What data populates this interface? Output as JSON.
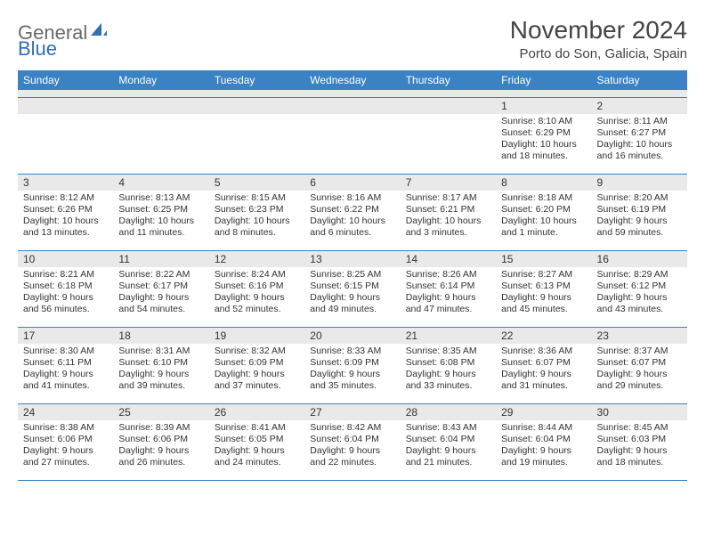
{
  "logo": {
    "text1": "General",
    "text2": "Blue"
  },
  "header": {
    "month_title": "November 2024",
    "location": "Porto do Son, Galicia, Spain"
  },
  "colors": {
    "header_blue": "#3a82c4",
    "rule_blue": "#3a82c4",
    "daynum_bg": "#e9e9e9",
    "logo_gray": "#6a6a6a",
    "logo_blue": "#2f6fb3",
    "text": "#333333",
    "background": "#ffffff"
  },
  "weekdays": [
    "Sunday",
    "Monday",
    "Tuesday",
    "Wednesday",
    "Thursday",
    "Friday",
    "Saturday"
  ],
  "weeks": [
    [
      {
        "n": "",
        "sr": "",
        "ss": "",
        "dl": ""
      },
      {
        "n": "",
        "sr": "",
        "ss": "",
        "dl": ""
      },
      {
        "n": "",
        "sr": "",
        "ss": "",
        "dl": ""
      },
      {
        "n": "",
        "sr": "",
        "ss": "",
        "dl": ""
      },
      {
        "n": "",
        "sr": "",
        "ss": "",
        "dl": ""
      },
      {
        "n": "1",
        "sr": "Sunrise: 8:10 AM",
        "ss": "Sunset: 6:29 PM",
        "dl": "Daylight: 10 hours and 18 minutes."
      },
      {
        "n": "2",
        "sr": "Sunrise: 8:11 AM",
        "ss": "Sunset: 6:27 PM",
        "dl": "Daylight: 10 hours and 16 minutes."
      }
    ],
    [
      {
        "n": "3",
        "sr": "Sunrise: 8:12 AM",
        "ss": "Sunset: 6:26 PM",
        "dl": "Daylight: 10 hours and 13 minutes."
      },
      {
        "n": "4",
        "sr": "Sunrise: 8:13 AM",
        "ss": "Sunset: 6:25 PM",
        "dl": "Daylight: 10 hours and 11 minutes."
      },
      {
        "n": "5",
        "sr": "Sunrise: 8:15 AM",
        "ss": "Sunset: 6:23 PM",
        "dl": "Daylight: 10 hours and 8 minutes."
      },
      {
        "n": "6",
        "sr": "Sunrise: 8:16 AM",
        "ss": "Sunset: 6:22 PM",
        "dl": "Daylight: 10 hours and 6 minutes."
      },
      {
        "n": "7",
        "sr": "Sunrise: 8:17 AM",
        "ss": "Sunset: 6:21 PM",
        "dl": "Daylight: 10 hours and 3 minutes."
      },
      {
        "n": "8",
        "sr": "Sunrise: 8:18 AM",
        "ss": "Sunset: 6:20 PM",
        "dl": "Daylight: 10 hours and 1 minute."
      },
      {
        "n": "9",
        "sr": "Sunrise: 8:20 AM",
        "ss": "Sunset: 6:19 PM",
        "dl": "Daylight: 9 hours and 59 minutes."
      }
    ],
    [
      {
        "n": "10",
        "sr": "Sunrise: 8:21 AM",
        "ss": "Sunset: 6:18 PM",
        "dl": "Daylight: 9 hours and 56 minutes."
      },
      {
        "n": "11",
        "sr": "Sunrise: 8:22 AM",
        "ss": "Sunset: 6:17 PM",
        "dl": "Daylight: 9 hours and 54 minutes."
      },
      {
        "n": "12",
        "sr": "Sunrise: 8:24 AM",
        "ss": "Sunset: 6:16 PM",
        "dl": "Daylight: 9 hours and 52 minutes."
      },
      {
        "n": "13",
        "sr": "Sunrise: 8:25 AM",
        "ss": "Sunset: 6:15 PM",
        "dl": "Daylight: 9 hours and 49 minutes."
      },
      {
        "n": "14",
        "sr": "Sunrise: 8:26 AM",
        "ss": "Sunset: 6:14 PM",
        "dl": "Daylight: 9 hours and 47 minutes."
      },
      {
        "n": "15",
        "sr": "Sunrise: 8:27 AM",
        "ss": "Sunset: 6:13 PM",
        "dl": "Daylight: 9 hours and 45 minutes."
      },
      {
        "n": "16",
        "sr": "Sunrise: 8:29 AM",
        "ss": "Sunset: 6:12 PM",
        "dl": "Daylight: 9 hours and 43 minutes."
      }
    ],
    [
      {
        "n": "17",
        "sr": "Sunrise: 8:30 AM",
        "ss": "Sunset: 6:11 PM",
        "dl": "Daylight: 9 hours and 41 minutes."
      },
      {
        "n": "18",
        "sr": "Sunrise: 8:31 AM",
        "ss": "Sunset: 6:10 PM",
        "dl": "Daylight: 9 hours and 39 minutes."
      },
      {
        "n": "19",
        "sr": "Sunrise: 8:32 AM",
        "ss": "Sunset: 6:09 PM",
        "dl": "Daylight: 9 hours and 37 minutes."
      },
      {
        "n": "20",
        "sr": "Sunrise: 8:33 AM",
        "ss": "Sunset: 6:09 PM",
        "dl": "Daylight: 9 hours and 35 minutes."
      },
      {
        "n": "21",
        "sr": "Sunrise: 8:35 AM",
        "ss": "Sunset: 6:08 PM",
        "dl": "Daylight: 9 hours and 33 minutes."
      },
      {
        "n": "22",
        "sr": "Sunrise: 8:36 AM",
        "ss": "Sunset: 6:07 PM",
        "dl": "Daylight: 9 hours and 31 minutes."
      },
      {
        "n": "23",
        "sr": "Sunrise: 8:37 AM",
        "ss": "Sunset: 6:07 PM",
        "dl": "Daylight: 9 hours and 29 minutes."
      }
    ],
    [
      {
        "n": "24",
        "sr": "Sunrise: 8:38 AM",
        "ss": "Sunset: 6:06 PM",
        "dl": "Daylight: 9 hours and 27 minutes."
      },
      {
        "n": "25",
        "sr": "Sunrise: 8:39 AM",
        "ss": "Sunset: 6:06 PM",
        "dl": "Daylight: 9 hours and 26 minutes."
      },
      {
        "n": "26",
        "sr": "Sunrise: 8:41 AM",
        "ss": "Sunset: 6:05 PM",
        "dl": "Daylight: 9 hours and 24 minutes."
      },
      {
        "n": "27",
        "sr": "Sunrise: 8:42 AM",
        "ss": "Sunset: 6:04 PM",
        "dl": "Daylight: 9 hours and 22 minutes."
      },
      {
        "n": "28",
        "sr": "Sunrise: 8:43 AM",
        "ss": "Sunset: 6:04 PM",
        "dl": "Daylight: 9 hours and 21 minutes."
      },
      {
        "n": "29",
        "sr": "Sunrise: 8:44 AM",
        "ss": "Sunset: 6:04 PM",
        "dl": "Daylight: 9 hours and 19 minutes."
      },
      {
        "n": "30",
        "sr": "Sunrise: 8:45 AM",
        "ss": "Sunset: 6:03 PM",
        "dl": "Daylight: 9 hours and 18 minutes."
      }
    ]
  ]
}
